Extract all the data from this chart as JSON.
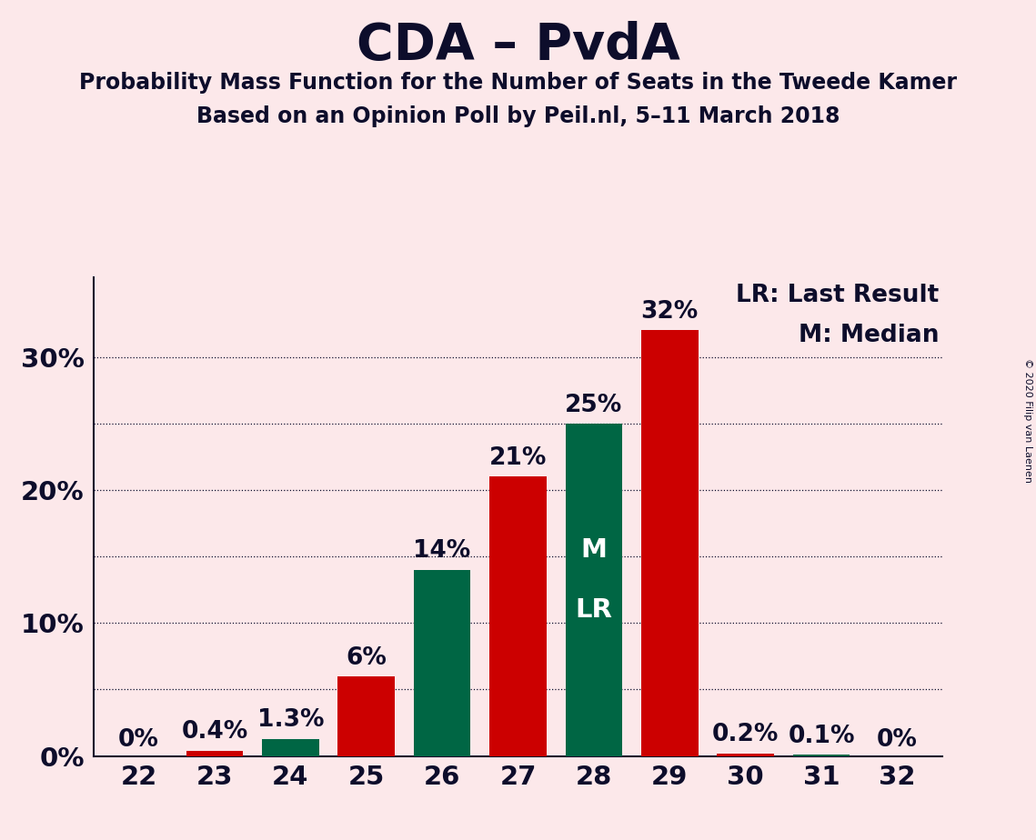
{
  "title": "CDA – PvdA",
  "subtitle1": "Probability Mass Function for the Number of Seats in the Tweede Kamer",
  "subtitle2": "Based on an Opinion Poll by Peil.nl, 5–11 March 2018",
  "copyright": "© 2020 Filip van Laenen",
  "seats": [
    22,
    23,
    24,
    25,
    26,
    27,
    28,
    29,
    30,
    31,
    32
  ],
  "values": [
    0.0,
    0.4,
    1.3,
    6.0,
    14.0,
    21.0,
    25.0,
    32.0,
    0.2,
    0.1,
    0.0
  ],
  "colors": [
    "#cc0000",
    "#cc0000",
    "#006644",
    "#cc0000",
    "#006644",
    "#cc0000",
    "#006644",
    "#cc0000",
    "#cc0000",
    "#006644",
    "#006644"
  ],
  "bar_labels": [
    "0%",
    "0.4%",
    "1.3%",
    "6%",
    "14%",
    "21%",
    "25%",
    "32%",
    "0.2%",
    "0.1%",
    "0%"
  ],
  "median_bar_idx": 6,
  "median_label": "M",
  "lr_label": "LR",
  "legend_text1": "LR: Last Result",
  "legend_text2": "M: Median",
  "background_color": "#fce8ea",
  "red_color": "#cc0000",
  "green_color": "#006644",
  "text_color": "#0d0d2b",
  "ylim": [
    0,
    36
  ],
  "yticks": [
    0,
    10,
    20,
    30
  ],
  "ytick_labels": [
    "0%",
    "10%",
    "20%",
    "30%"
  ],
  "grid_y": [
    5,
    10,
    15,
    20,
    25,
    30
  ],
  "title_fontsize": 40,
  "subtitle_fontsize": 17,
  "axis_fontsize": 21,
  "bar_label_fontsize": 19,
  "legend_fontsize": 19,
  "inside_label_fontsize": 21
}
